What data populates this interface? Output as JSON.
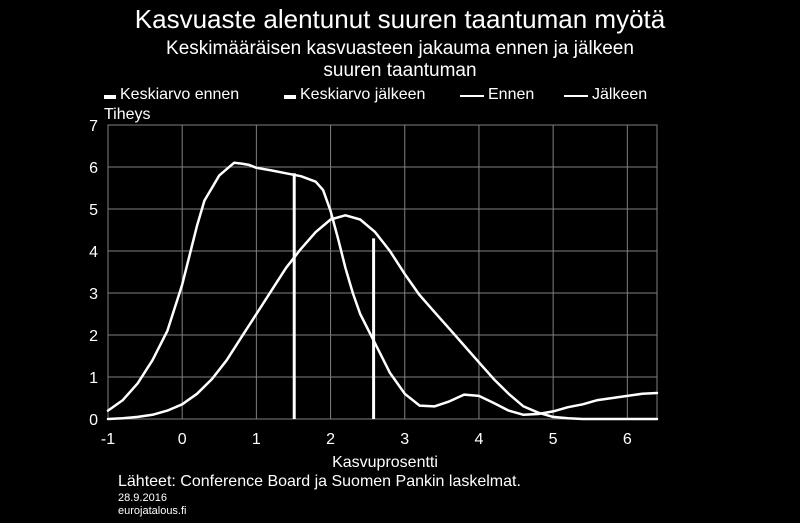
{
  "chart_data": {
    "type": "line",
    "title": "Kasvuaste alentunut suuren taantuman myötä",
    "subtitle_lines": [
      "Keskimääräisen kasvuasteen jakauma ennen ja jälkeen",
      "suuren taantuman"
    ],
    "xlabel": "Kasvuprosentti",
    "ylabel": "Tiheys",
    "xlim": [
      -1,
      6.4
    ],
    "ylim": [
      0,
      7
    ],
    "x_ticks": [
      -1,
      0,
      1,
      2,
      3,
      4,
      5,
      6
    ],
    "y_ticks": [
      0,
      1,
      2,
      3,
      4,
      5,
      6,
      7
    ],
    "grid": true,
    "legend": "top",
    "series": [
      {
        "name": "Ennen",
        "kind": "line",
        "x": [
          -1,
          -0.8,
          -0.6,
          -0.4,
          -0.2,
          0,
          0.1,
          0.2,
          0.3,
          0.4,
          0.5,
          0.6,
          0.7,
          0.8,
          0.9,
          1.0,
          1.2,
          1.4,
          1.6,
          1.8,
          1.9,
          2.0,
          2.1,
          2.2,
          2.3,
          2.4,
          2.6,
          2.8,
          3.0,
          3.2,
          3.4,
          3.6,
          3.8,
          4.0,
          4.2,
          4.4,
          4.6,
          4.8,
          5.0,
          5.2,
          5.4,
          5.6,
          5.8,
          6.0,
          6.2,
          6.4
        ],
        "y": [
          0.2,
          0.45,
          0.85,
          1.4,
          2.1,
          3.2,
          3.9,
          4.6,
          5.2,
          5.5,
          5.8,
          5.95,
          6.1,
          6.08,
          6.05,
          5.98,
          5.92,
          5.85,
          5.78,
          5.65,
          5.45,
          4.95,
          4.3,
          3.6,
          3.0,
          2.5,
          1.8,
          1.1,
          0.6,
          0.32,
          0.3,
          0.42,
          0.58,
          0.55,
          0.38,
          0.2,
          0.1,
          0.12,
          0.18,
          0.28,
          0.35,
          0.45,
          0.5,
          0.55,
          0.6,
          0.62
        ]
      },
      {
        "name": "Jälkeen",
        "kind": "line",
        "x": [
          -1,
          -0.8,
          -0.6,
          -0.4,
          -0.2,
          0,
          0.2,
          0.4,
          0.6,
          0.8,
          1.0,
          1.2,
          1.4,
          1.6,
          1.8,
          2.0,
          2.2,
          2.4,
          2.6,
          2.8,
          3.0,
          3.2,
          3.4,
          3.6,
          3.8,
          4.0,
          4.2,
          4.4,
          4.6,
          4.8,
          5.0,
          5.2,
          5.4,
          5.6,
          5.8,
          6.0,
          6.2,
          6.4
        ],
        "y": [
          0.0,
          0.02,
          0.05,
          0.1,
          0.2,
          0.35,
          0.6,
          0.95,
          1.4,
          1.95,
          2.5,
          3.05,
          3.6,
          4.05,
          4.45,
          4.75,
          4.85,
          4.75,
          4.45,
          4.0,
          3.45,
          2.95,
          2.55,
          2.15,
          1.75,
          1.35,
          0.95,
          0.6,
          0.3,
          0.15,
          0.05,
          0.02,
          0.0,
          0.0,
          0.0,
          0.0,
          0.0,
          0.0
        ]
      },
      {
        "name": "Keskiarvo ennen",
        "kind": "vline",
        "x": 1.51,
        "y": 5.85
      },
      {
        "name": "Keskiarvo jälkeen",
        "kind": "vline",
        "x": 2.58,
        "y": 4.3
      }
    ]
  },
  "source": "Lähteet: Conference Board ja Suomen Pankin laskelmat.",
  "date": "28.9.2016",
  "site": "eurojatalous.fi",
  "colors": {
    "background": "#000000",
    "foreground": "#ffffff",
    "grid": "#808080"
  }
}
